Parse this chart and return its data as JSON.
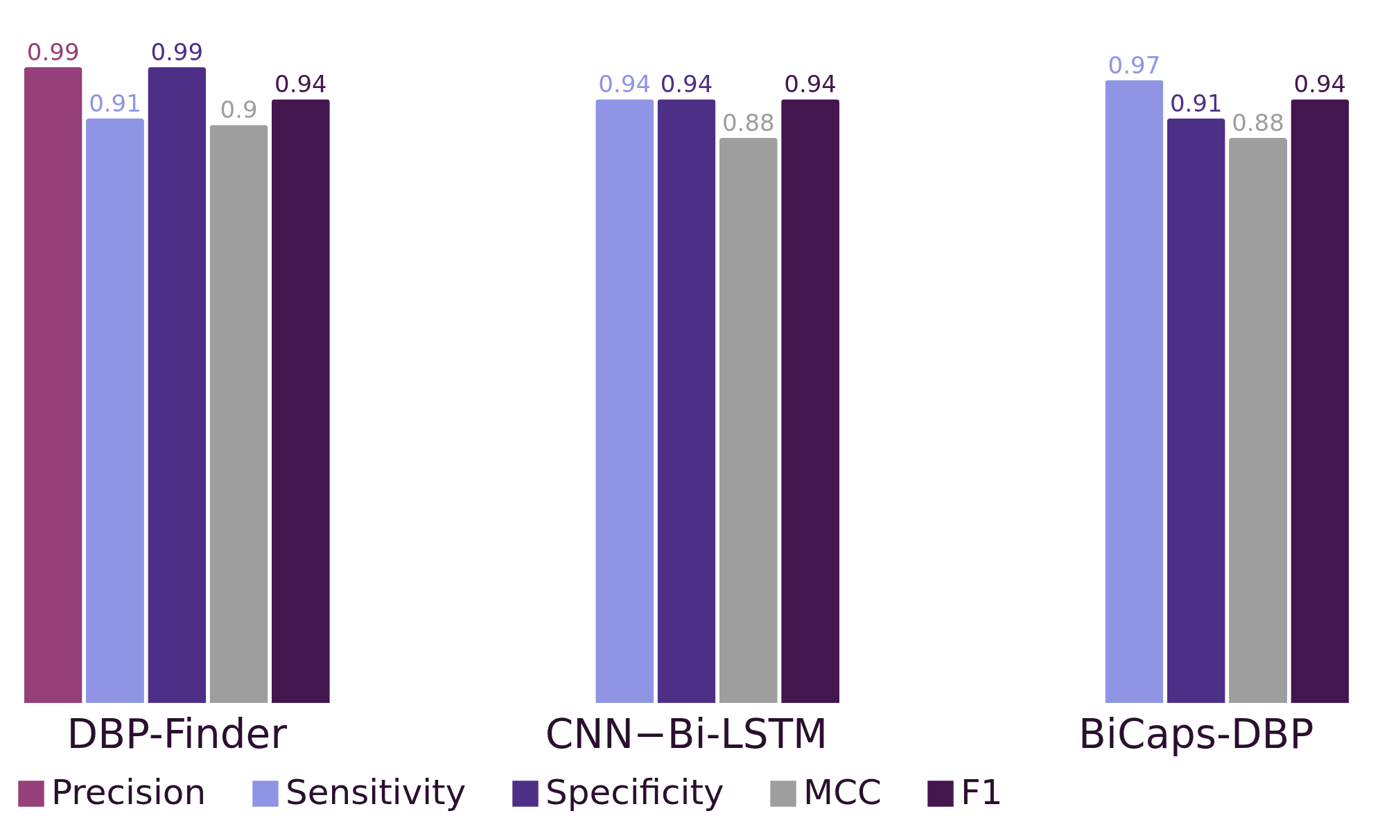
{
  "chart_data": {
    "type": "bar",
    "categories": [
      "DBP-Finder",
      "CNN−Bi-LSTM",
      "BiCaps-DBP"
    ],
    "series": [
      {
        "name": "Precision",
        "color": "#963f78",
        "values": [
          0.99,
          null,
          null
        ]
      },
      {
        "name": "Sensitivity",
        "color": "#8f95e4",
        "values": [
          0.91,
          0.94,
          0.97
        ]
      },
      {
        "name": "Specificity",
        "color": "#4e2f88",
        "values": [
          0.99,
          0.94,
          0.91
        ]
      },
      {
        "name": "MCC",
        "color": "#9e9e9e",
        "values": [
          0.9,
          0.88,
          0.88
        ]
      },
      {
        "name": "F1",
        "color": "#44164f",
        "values": [
          0.94,
          0.94,
          0.94
        ]
      }
    ],
    "data_labels": true,
    "legend": "bottom",
    "grid": false,
    "tick_labels": "x"
  }
}
